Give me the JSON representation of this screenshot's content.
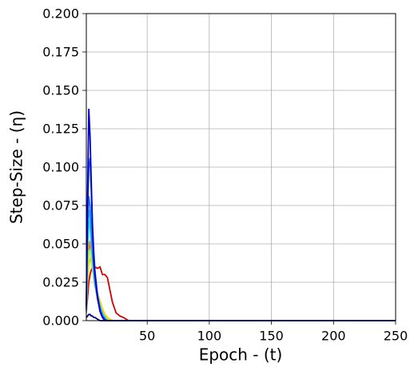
{
  "chart_data": {
    "type": "line",
    "xlabel": "Epoch - (t)",
    "ylabel": "Step-Size - (η)",
    "x": [
      1,
      2,
      3,
      4,
      5,
      6,
      7,
      8,
      10,
      12,
      14,
      16,
      18,
      20,
      22,
      25,
      28,
      31,
      35,
      40,
      250
    ],
    "xlim": [
      1,
      250
    ],
    "xticks": [
      50,
      100,
      150,
      200,
      250
    ],
    "ylim": [
      0,
      0.2
    ],
    "yticks": [
      {
        "value": 0,
        "label": "0.000"
      },
      {
        "value": 0.025,
        "label": "0.025"
      },
      {
        "value": 0.05,
        "label": "0.050"
      },
      {
        "value": 0.075,
        "label": "0.075"
      },
      {
        "value": 0.1,
        "label": "0.100"
      },
      {
        "value": 0.125,
        "label": "0.125"
      },
      {
        "value": 0.15,
        "label": "0.150"
      },
      {
        "value": 0.175,
        "label": "0.175"
      },
      {
        "value": 0.2,
        "label": "0.200"
      }
    ],
    "grid": true,
    "series": [
      {
        "color": "#d40000",
        "values": [
          0.005,
          0.015,
          0.025,
          0.03,
          0.033,
          0.035,
          0.036,
          0.035,
          0.034,
          0.035,
          0.03,
          0.03,
          0.028,
          0.02,
          0.012,
          0.005,
          0.003,
          0.002,
          0,
          0,
          0
        ]
      },
      {
        "color": "#ff4500",
        "values": [
          0.006,
          0.03,
          0.045,
          0.05,
          0.048,
          0.04,
          0.032,
          0.026,
          0.018,
          0.012,
          0.007,
          0.004,
          0.002,
          0.001,
          0,
          0,
          0,
          0,
          0,
          0,
          0
        ]
      },
      {
        "color": "#ff8c00",
        "values": [
          0.006,
          0.035,
          0.05,
          0.052,
          0.045,
          0.036,
          0.028,
          0.022,
          0.016,
          0.01,
          0.006,
          0.003,
          0.001,
          0,
          0,
          0,
          0,
          0,
          0,
          0,
          0
        ]
      },
      {
        "color": "#ffd700",
        "values": [
          0.005,
          0.025,
          0.036,
          0.04,
          0.038,
          0.033,
          0.028,
          0.024,
          0.018,
          0.013,
          0.008,
          0.004,
          0.002,
          0.001,
          0,
          0,
          0,
          0,
          0,
          0,
          0
        ]
      },
      {
        "color": "#b0f040",
        "values": [
          0.005,
          0.03,
          0.045,
          0.046,
          0.04,
          0.034,
          0.028,
          0.022,
          0.015,
          0.009,
          0.005,
          0.002,
          0.001,
          0,
          0,
          0,
          0,
          0,
          0,
          0,
          0
        ]
      },
      {
        "color": "#40e0d0",
        "values": [
          0.006,
          0.045,
          0.065,
          0.06,
          0.05,
          0.04,
          0.032,
          0.025,
          0.016,
          0.01,
          0.005,
          0.002,
          0,
          0,
          0,
          0,
          0,
          0,
          0,
          0,
          0
        ]
      },
      {
        "color": "#00d5ff",
        "values": [
          0.006,
          0.05,
          0.072,
          0.068,
          0.055,
          0.042,
          0.032,
          0.024,
          0.015,
          0.008,
          0.004,
          0.001,
          0,
          0,
          0,
          0,
          0,
          0,
          0,
          0,
          0
        ]
      },
      {
        "color": "#1e78ff",
        "values": [
          0.007,
          0.06,
          0.081,
          0.075,
          0.06,
          0.045,
          0.034,
          0.025,
          0.014,
          0.007,
          0.003,
          0.001,
          0,
          0,
          0,
          0,
          0,
          0,
          0,
          0,
          0
        ]
      },
      {
        "color": "#0050ff",
        "values": [
          0.008,
          0.07,
          0.1,
          0.106,
          0.085,
          0.062,
          0.045,
          0.032,
          0.017,
          0.008,
          0.003,
          0.001,
          0,
          0,
          0,
          0,
          0,
          0,
          0,
          0,
          0
        ]
      },
      {
        "color": "#0000cd",
        "values": [
          0.01,
          0.08,
          0.138,
          0.12,
          0.09,
          0.06,
          0.04,
          0.03,
          0.015,
          0.006,
          0.002,
          0,
          0,
          0,
          0,
          0,
          0,
          0,
          0,
          0,
          0
        ]
      },
      {
        "color": "#000080",
        "values": [
          0.002,
          0.003,
          0.004,
          0.004,
          0.003,
          0.003,
          0.002,
          0.002,
          0.001,
          0,
          0,
          0,
          0,
          0,
          0,
          0,
          0,
          0,
          0,
          0,
          0
        ]
      }
    ]
  }
}
